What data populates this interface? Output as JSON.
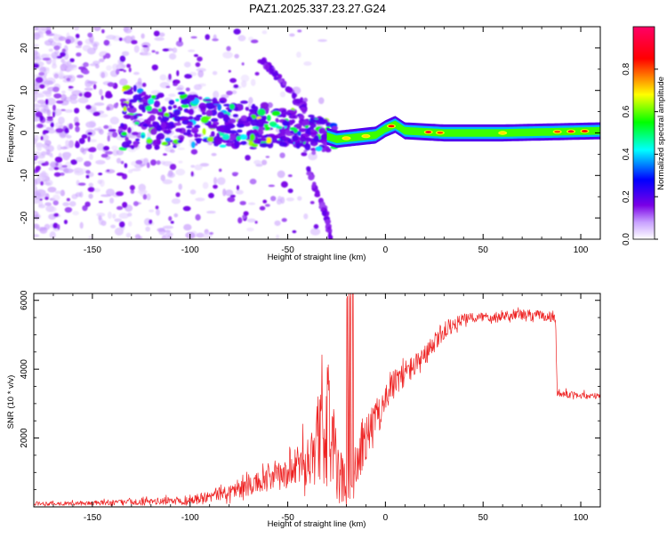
{
  "title": "PAZ1.2025.337.23.27.G24",
  "chart_data": [
    {
      "type": "heatmap",
      "name": "spectrogram",
      "xlabel": "Height of straight line (km)",
      "ylabel": "Frequency (Hz)",
      "xlim": [
        -180,
        110
      ],
      "ylim": [
        -25,
        25
      ],
      "xticks": [
        -150,
        -100,
        -50,
        0,
        50,
        100
      ],
      "yticks": [
        -20,
        -10,
        0,
        10,
        20
      ],
      "colorbar": {
        "label": "Normalized spectral amplitude",
        "range": [
          0,
          1
        ],
        "ticks": [
          0.0,
          0.2,
          0.4,
          0.6,
          0.8
        ],
        "tick_labels": [
          "0.0",
          "0.2",
          "0.4",
          "0.6",
          "0.8"
        ],
        "colors": [
          "#ffffff",
          "#c8a0ff",
          "#7a00e6",
          "#0000ff",
          "#00ffff",
          "#00ff00",
          "#ffff00",
          "#ff0000",
          "#ff0066"
        ]
      },
      "features": {
        "main_ridge": {
          "x": [
            -130,
            -100,
            -75,
            -50,
            -35,
            -25,
            -15,
            -5,
            0,
            5,
            10,
            30,
            60,
            90,
            110
          ],
          "freq": [
            3.5,
            3,
            2.2,
            1.5,
            0,
            -1.5,
            -1,
            -0.5,
            1,
            2,
            0.5,
            0,
            0,
            0.3,
            0.5
          ]
        },
        "branch_up": {
          "x": [
            -63,
            -55,
            -48,
            -40
          ],
          "freq": [
            17,
            13,
            9,
            5
          ]
        },
        "branch_down": {
          "x": [
            -40,
            -35,
            -30,
            -28
          ],
          "freq": [
            -8,
            -14,
            -20,
            -25
          ]
        }
      }
    },
    {
      "type": "line",
      "name": "snr",
      "xlabel": "Height of straight line (km)",
      "ylabel": "SNR (10 * v/v)",
      "xlim": [
        -180,
        110
      ],
      "ylim": [
        0,
        6200
      ],
      "xticks": [
        -150,
        -100,
        -50,
        0,
        50,
        100
      ],
      "yticks": [
        2000,
        4000,
        6000
      ],
      "color": "#ee2222",
      "series": [
        {
          "name": "SNR",
          "x": [
            -180,
            -160,
            -140,
            -120,
            -100,
            -90,
            -80,
            -70,
            -60,
            -50,
            -45,
            -40,
            -35,
            -30,
            -28,
            -25,
            -22,
            -18,
            -15,
            -10,
            -5,
            0,
            5,
            10,
            15,
            20,
            25,
            30,
            35,
            40,
            50,
            60,
            70,
            80,
            87,
            88,
            95,
            105,
            110
          ],
          "y": [
            100,
            100,
            120,
            150,
            200,
            300,
            450,
            600,
            800,
            950,
            1150,
            1450,
            1900,
            2350,
            2600,
            1000,
            800,
            500,
            1200,
            2000,
            2600,
            3200,
            3600,
            3900,
            4100,
            4300,
            4750,
            5100,
            5300,
            5450,
            5520,
            5560,
            5580,
            5560,
            5500,
            3300,
            3260,
            3220,
            3200
          ],
          "noise": [
            60,
            60,
            80,
            100,
            130,
            170,
            220,
            280,
            360,
            450,
            600,
            800,
            1300,
            1700,
            2000,
            900,
            700,
            500,
            800,
            650,
            500,
            450,
            420,
            380,
            350,
            320,
            300,
            280,
            200,
            160,
            150,
            150,
            170,
            150,
            150,
            120,
            100,
            100,
            100
          ]
        }
      ]
    }
  ]
}
